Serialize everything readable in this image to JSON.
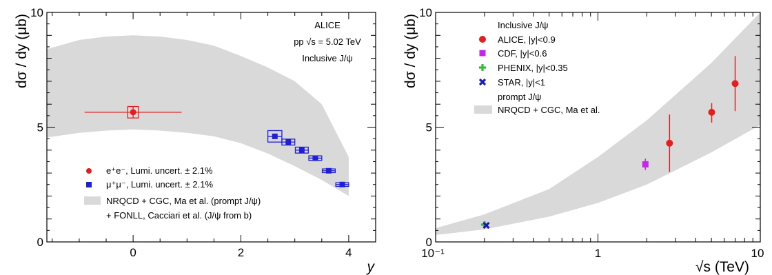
{
  "chart_data": [
    {
      "type": "scatter",
      "xlabel": "y",
      "ylabel": "dσ / dy (μb)",
      "xlim": [
        -1.6,
        4.5
      ],
      "ylim": [
        0,
        10
      ],
      "xticks": [
        "0",
        "2",
        "4"
      ],
      "yticks": [
        "0",
        "5",
        "10"
      ],
      "annotations": [
        "ALICE",
        "pp √s = 5.02 TeV",
        "Inclusive J/ψ"
      ],
      "legend_position": "bottom-left",
      "legend": [
        "e⁺e⁻, Lumi. uncert. ± 2.1%",
        "μ⁺μ⁻, Lumi. uncert. ± 2.1%",
        "NRQCD + CGC, Ma et al. (prompt J/ψ)",
        "+ FONLL, Cacciari et al. (J/ψ from b)"
      ],
      "series": [
        {
          "name": "e⁺e⁻, Lumi. uncert. ± 2.1%",
          "color": "#e41e1e",
          "marker": "circle",
          "points": [
            {
              "x": 0.0,
              "y": 5.65,
              "xerr": 0.9,
              "yerr": 0.25,
              "syst_dx": 0.1,
              "syst_dy": 0.25
            }
          ]
        },
        {
          "name": "μ⁺μ⁻, Lumi. uncert. ± 2.1%",
          "color": "#1f1fd6",
          "marker": "square",
          "points": [
            {
              "x": 2.63,
              "y": 4.6,
              "xerr": 0.13,
              "yerr": 0.12,
              "syst_dx": 0.13,
              "syst_dy": 0.25
            },
            {
              "x": 2.88,
              "y": 4.35,
              "xerr": 0.12,
              "yerr": 0.08,
              "syst_dx": 0.12,
              "syst_dy": 0.13
            },
            {
              "x": 3.13,
              "y": 4.0,
              "xerr": 0.12,
              "yerr": 0.08,
              "syst_dx": 0.12,
              "syst_dy": 0.13
            },
            {
              "x": 3.38,
              "y": 3.65,
              "xerr": 0.12,
              "yerr": 0.06,
              "syst_dx": 0.12,
              "syst_dy": 0.1
            },
            {
              "x": 3.63,
              "y": 3.1,
              "xerr": 0.12,
              "yerr": 0.05,
              "syst_dx": 0.12,
              "syst_dy": 0.08
            },
            {
              "x": 3.88,
              "y": 2.5,
              "xerr": 0.12,
              "yerr": 0.05,
              "syst_dx": 0.12,
              "syst_dy": 0.08
            }
          ]
        }
      ],
      "band": {
        "name": "NRQCD + CGC, Ma et al. (prompt J/ψ) + FONLL, Cacciari et al. (J/ψ from b)",
        "color": "#d9d9d9",
        "x": [
          -1.6,
          -1.0,
          -0.5,
          0.0,
          0.5,
          1.0,
          1.5,
          2.0,
          2.5,
          3.0,
          3.5,
          4.0
        ],
        "upper": [
          8.4,
          8.8,
          8.95,
          9.0,
          8.95,
          8.8,
          8.55,
          8.1,
          7.6,
          7.0,
          6.0,
          3.7
        ],
        "lower": [
          4.55,
          4.75,
          4.85,
          4.9,
          4.85,
          4.75,
          4.6,
          4.3,
          3.85,
          3.3,
          2.7,
          2.0
        ]
      }
    },
    {
      "type": "scatter",
      "xlabel": "√s (TeV)",
      "ylabel": "dσ / dy (μb)",
      "xscale": "log",
      "xlim": [
        0.1,
        10
      ],
      "ylim": [
        0,
        10
      ],
      "xticks": [
        "10⁻¹",
        "1",
        "10"
      ],
      "yticks": [
        "0",
        "5",
        "10"
      ],
      "legend_position": "top-left",
      "legend_title": "Inclusive J/ψ",
      "legend_subtitle": "prompt J/ψ",
      "legend_band_label": "NRQCD + CGC, Ma et al.",
      "series": [
        {
          "name": "ALICE, |y|<0.9",
          "color": "#e41e1e",
          "marker": "circle",
          "points": [
            {
              "x": 2.76,
              "y": 4.3,
              "yerr_lo": 1.25,
              "yerr_hi": 1.25
            },
            {
              "x": 5.02,
              "y": 5.65,
              "yerr_lo": 0.45,
              "yerr_hi": 0.4
            },
            {
              "x": 7.0,
              "y": 6.9,
              "yerr_lo": 1.2,
              "yerr_hi": 1.2
            }
          ]
        },
        {
          "name": "CDF, |y|<0.6",
          "color": "#c526e8",
          "marker": "square",
          "points": [
            {
              "x": 1.96,
              "y": 3.38,
              "yerr_lo": 0.25,
              "yerr_hi": 0.25
            }
          ]
        },
        {
          "name": "PHENIX, |y|<0.35",
          "color": "#3cb83c",
          "marker": "plus",
          "points": [
            {
              "x": 0.2,
              "y": 0.75,
              "yerr_lo": 0.08,
              "yerr_hi": 0.08
            }
          ]
        },
        {
          "name": "STAR, |y|<1",
          "color": "#1a1ab0",
          "marker": "cross",
          "points": [
            {
              "x": 0.205,
              "y": 0.72,
              "yerr_lo": 0.06,
              "yerr_hi": 0.06
            }
          ]
        }
      ],
      "band": {
        "name": "NRQCD + CGC, Ma et al.",
        "color": "#d9d9d9",
        "x": [
          0.1,
          0.2,
          0.5,
          1.0,
          2.0,
          5.0,
          10.0
        ],
        "upper": [
          0.6,
          1.2,
          2.3,
          3.7,
          5.3,
          7.8,
          10.0
        ],
        "lower": [
          0.3,
          0.55,
          1.1,
          1.7,
          2.5,
          3.9,
          5.1
        ]
      }
    }
  ]
}
